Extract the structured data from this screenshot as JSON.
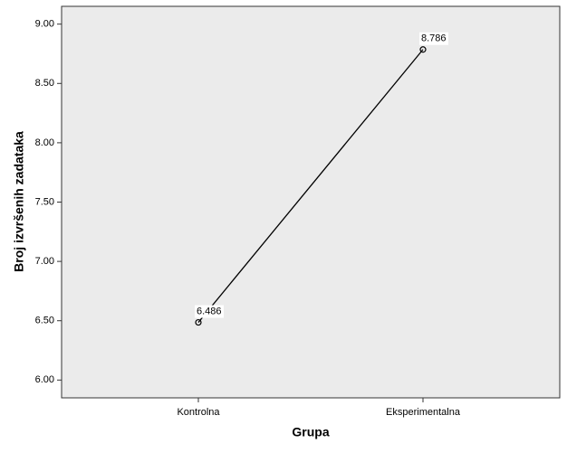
{
  "chart_data": {
    "type": "line",
    "categories": [
      "Kontrolna",
      "Eksperimentalna"
    ],
    "values": [
      6.486,
      8.786
    ],
    "color": "#000000",
    "x_label": "Grupa",
    "y_label": "Broj izvršenih zadataka",
    "ylim": [
      5.85,
      9.15
    ],
    "yticks": [
      {
        "value": 6,
        "label": "6.00"
      },
      {
        "value": 6.5,
        "label": "6.50"
      },
      {
        "value": 7,
        "label": "7.00"
      },
      {
        "value": 7.5,
        "label": "7.50"
      },
      {
        "value": 8,
        "label": "8.00"
      },
      {
        "value": 8.5,
        "label": "8.50"
      },
      {
        "value": 9,
        "label": "9.00"
      }
    ],
    "grid": false
  }
}
